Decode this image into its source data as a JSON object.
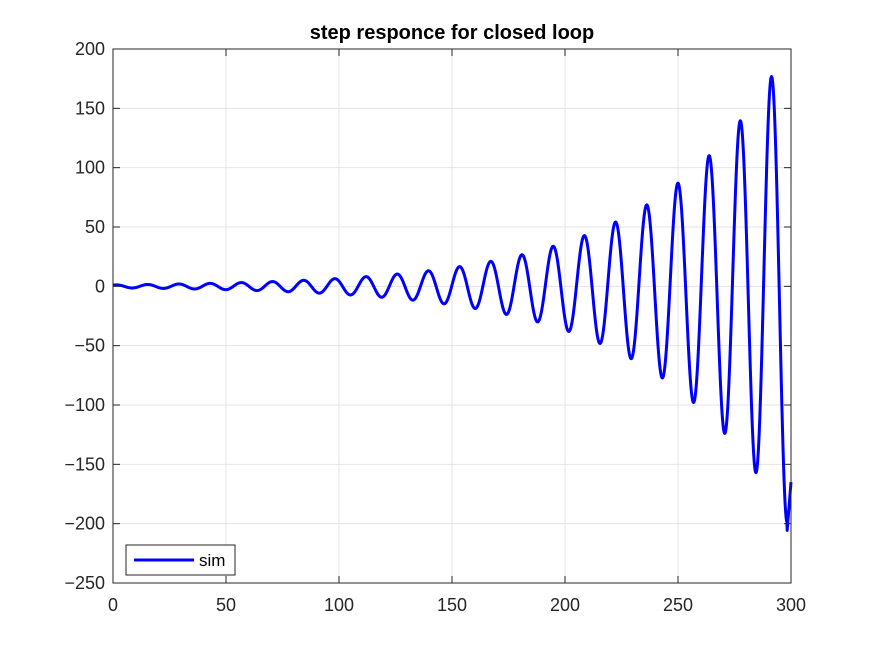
{
  "chart_data": {
    "type": "line",
    "title": "step responce for closed loop",
    "xlabel": "",
    "ylabel": "",
    "xlim": [
      0,
      300
    ],
    "ylim": [
      -250,
      200
    ],
    "xticks": [
      0,
      50,
      100,
      150,
      200,
      250,
      300
    ],
    "yticks": [
      -250,
      -200,
      -150,
      -100,
      -50,
      0,
      50,
      100,
      150,
      200
    ],
    "grid": true,
    "legend": {
      "placement": "bottom-left",
      "entries": [
        "sim"
      ]
    },
    "colors": {
      "series": "#0000ff",
      "grid": "#e5e5e5",
      "axes": "#262626"
    },
    "series": [
      {
        "name": "sim",
        "signal": {
          "form": "growing-oscillation",
          "period": 13.8,
          "amplitude_at_x0": 1.2,
          "amplitude_at_x300": 205,
          "first_peak_x": 1.5
        },
        "x": [
          0,
          1.5,
          8.4,
          15.3,
          22.2,
          29.1,
          36.0,
          42.9,
          49.8,
          56.7,
          63.6,
          70.5,
          77.4,
          84.3,
          91.2,
          98.1,
          105.0,
          111.9,
          118.8,
          125.7,
          132.6,
          139.5,
          146.4,
          153.3,
          160.2,
          167.1,
          174.0,
          180.9,
          187.8,
          194.7,
          201.6,
          208.5,
          215.4,
          222.3,
          229.2,
          236.1,
          243.0,
          249.9,
          256.8,
          263.7,
          270.6,
          277.5,
          284.4,
          291.3,
          298.2,
          300
        ],
        "values": [
          0.6,
          1.2,
          -1.2,
          1.5,
          -1.5,
          1.8,
          -1.9,
          2.3,
          -2.4,
          2.9,
          -3.1,
          3.6,
          -3.8,
          4.6,
          -4.8,
          5.8,
          -6.2,
          7.3,
          -7.8,
          9.2,
          -9.8,
          11.6,
          -12.4,
          14.6,
          -15.6,
          18.4,
          -19.7,
          23.2,
          -24.8,
          30,
          -35,
          42,
          -47,
          54,
          -60,
          69,
          -78,
          88,
          -99,
          113,
          -127,
          145,
          -162,
          185,
          -208,
          -165
        ]
      }
    ]
  }
}
